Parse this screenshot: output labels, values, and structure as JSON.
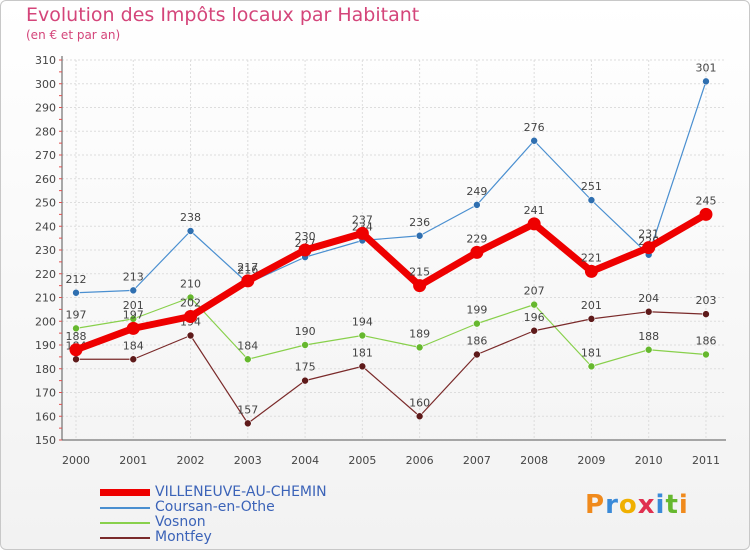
{
  "title": "Evolution des Impôts locaux par Habitant",
  "subtitle": "(en € et par an)",
  "logo": {
    "p": "P",
    "r": "r",
    "o": "o",
    "x": "x",
    "i1": "i",
    "t": "t",
    "i2": "i"
  },
  "colors": {
    "title": "#d4457a",
    "axis": "#555555",
    "grid": "#dddddd",
    "tick_red": "#e05050"
  },
  "chart_data": {
    "type": "line",
    "title": "Evolution des Impôts locaux par Habitant",
    "ylabel": "(en € et par an)",
    "xlabel": "",
    "ylim": [
      150,
      310
    ],
    "yticks": [
      150,
      160,
      170,
      180,
      190,
      200,
      210,
      220,
      230,
      240,
      250,
      260,
      270,
      280,
      290,
      300,
      310
    ],
    "categories": [
      "2000",
      "2001",
      "2002",
      "2003",
      "2004",
      "2005",
      "2006",
      "2007",
      "2008",
      "2009",
      "2010",
      "2011"
    ],
    "series": [
      {
        "name": "Coursan-en-Othe",
        "color": "#4a8fd0",
        "marker": "#2f6fb0",
        "width": 1.2,
        "radius": 3.5,
        "values": [
          212,
          213,
          238,
          216,
          227,
          234,
          236,
          249,
          276,
          251,
          228,
          301
        ],
        "labels": [
          "212",
          "213",
          "238",
          "216",
          "227",
          "234",
          "236",
          "249",
          "276",
          "251",
          "228",
          "301"
        ]
      },
      {
        "name": "Vosnon",
        "color": "#88d04b",
        "marker": "#66b82e",
        "width": 1.2,
        "radius": 3.5,
        "values": [
          197,
          201,
          210,
          184,
          190,
          194,
          189,
          199,
          207,
          181,
          188,
          186
        ],
        "labels": [
          "197",
          "201",
          "210",
          "184",
          "190",
          "194",
          "189",
          "199",
          "207",
          "181",
          "188",
          "186"
        ]
      },
      {
        "name": "Montfey",
        "color": "#7a2a2a",
        "marker": "#5e1a1a",
        "width": 1.2,
        "radius": 3.5,
        "values": [
          184,
          184,
          194,
          157,
          175,
          181,
          160,
          186,
          196,
          201,
          204,
          203
        ],
        "labels": [
          "184",
          "184",
          "194",
          "157",
          "175",
          "181",
          "160",
          "186",
          "196",
          "201",
          "204",
          "203"
        ]
      },
      {
        "name": "VILLENEUVE-AU-CHEMIN",
        "color": "#ee0000",
        "marker": "#ee0000",
        "width": 7,
        "radius": 6.5,
        "values": [
          188,
          197,
          202,
          217,
          230,
          237,
          215,
          229,
          241,
          221,
          231,
          245
        ],
        "labels": [
          "188",
          "197",
          "202",
          "217",
          "230",
          "237",
          "215",
          "229",
          "241",
          "221",
          "231",
          "245"
        ]
      }
    ],
    "legend": [
      "VILLENEUVE-AU-CHEMIN",
      "Coursan-en-Othe",
      "Vosnon",
      "Montfey"
    ],
    "legend_position": "bottom-left"
  }
}
